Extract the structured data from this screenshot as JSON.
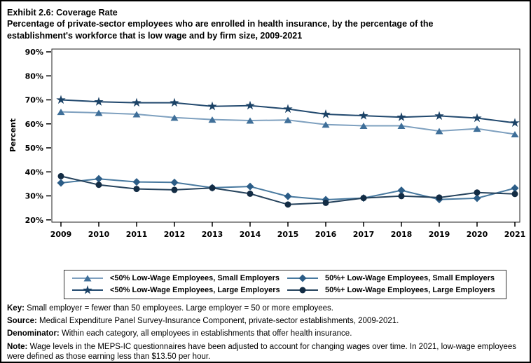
{
  "title": "Exhibit 2.6: Coverage Rate",
  "subtitle": "Percentage of private-sector employees who are enrolled in health insurance, by the percentage of the establishment's workforce that is low wage and by firm size, 2009-2021",
  "chart_data": {
    "type": "line",
    "x": [
      2009,
      2010,
      2011,
      2012,
      2013,
      2014,
      2015,
      2016,
      2017,
      2018,
      2019,
      2020,
      2021
    ],
    "ylabel": "Percent",
    "ylim": [
      20,
      90
    ],
    "yticks": [
      20,
      30,
      40,
      50,
      60,
      70,
      80,
      90
    ],
    "ytick_suffix": "%",
    "grid": false,
    "legend_position": "bottom",
    "series": [
      {
        "name": "<50% Low-Wage Employees, Small Employers",
        "marker": "triangle",
        "line_color": "#7ea0bf",
        "marker_color": "#3f6f99",
        "values": [
          65.0,
          64.6,
          64.0,
          62.6,
          61.8,
          61.4,
          61.6,
          59.7,
          59.2,
          59.2,
          57.0,
          58.0,
          55.7
        ]
      },
      {
        "name": "<50% Low-Wage Employees, Large Employers",
        "marker": "star",
        "line_color": "#22496e",
        "marker_color": "#1b4266",
        "values": [
          70.0,
          69.2,
          68.8,
          68.8,
          67.3,
          67.6,
          66.2,
          64.0,
          63.4,
          62.8,
          63.3,
          62.4,
          60.4
        ]
      },
      {
        "name": "50%+ Low-Wage Employees, Small Employers",
        "marker": "diamond",
        "line_color": "#48799f",
        "marker_color": "#2b5c86",
        "values": [
          35.4,
          37.1,
          35.8,
          35.6,
          33.4,
          33.9,
          29.8,
          28.4,
          29.1,
          32.3,
          28.5,
          29.0,
          33.2
        ]
      },
      {
        "name": "50%+ Low-Wage Employees, Large Employers",
        "marker": "circle",
        "line_color": "#25425c",
        "marker_color": "#132c44",
        "values": [
          38.2,
          34.6,
          32.9,
          32.5,
          33.3,
          30.9,
          26.4,
          27.1,
          29.1,
          29.9,
          29.3,
          31.4,
          30.8
        ]
      }
    ]
  },
  "legend": {
    "items": [
      {
        "label": "<50% Low-Wage Employees, Small Employers",
        "series_index": 0
      },
      {
        "label": "50%+ Low-Wage Employees, Small Employers",
        "series_index": 2
      },
      {
        "label": "<50% Low-Wage Employees, Large Employers",
        "series_index": 1
      },
      {
        "label": "50%+ Low-Wage Employees, Large Employers",
        "series_index": 3
      }
    ]
  },
  "footnotes": [
    {
      "label": "Key:",
      "text": " Small employer = fewer than 50 employees. Large employer = 50 or more employees."
    },
    {
      "label": "Source:",
      "text": " Medical Expenditure Panel Survey-Insurance Component, private-sector establishments, 2009-2021."
    },
    {
      "label": "Denominator:",
      "text": " Within each category, all employees in establishments that offer health insurance."
    },
    {
      "label": "Note:",
      "text": " Wage levels in the MEPS-IC questionnaires have been adjusted to account for changing wages over time. In 2021, low-wage employees were defined as those earning less than $13.50 per hour."
    }
  ]
}
